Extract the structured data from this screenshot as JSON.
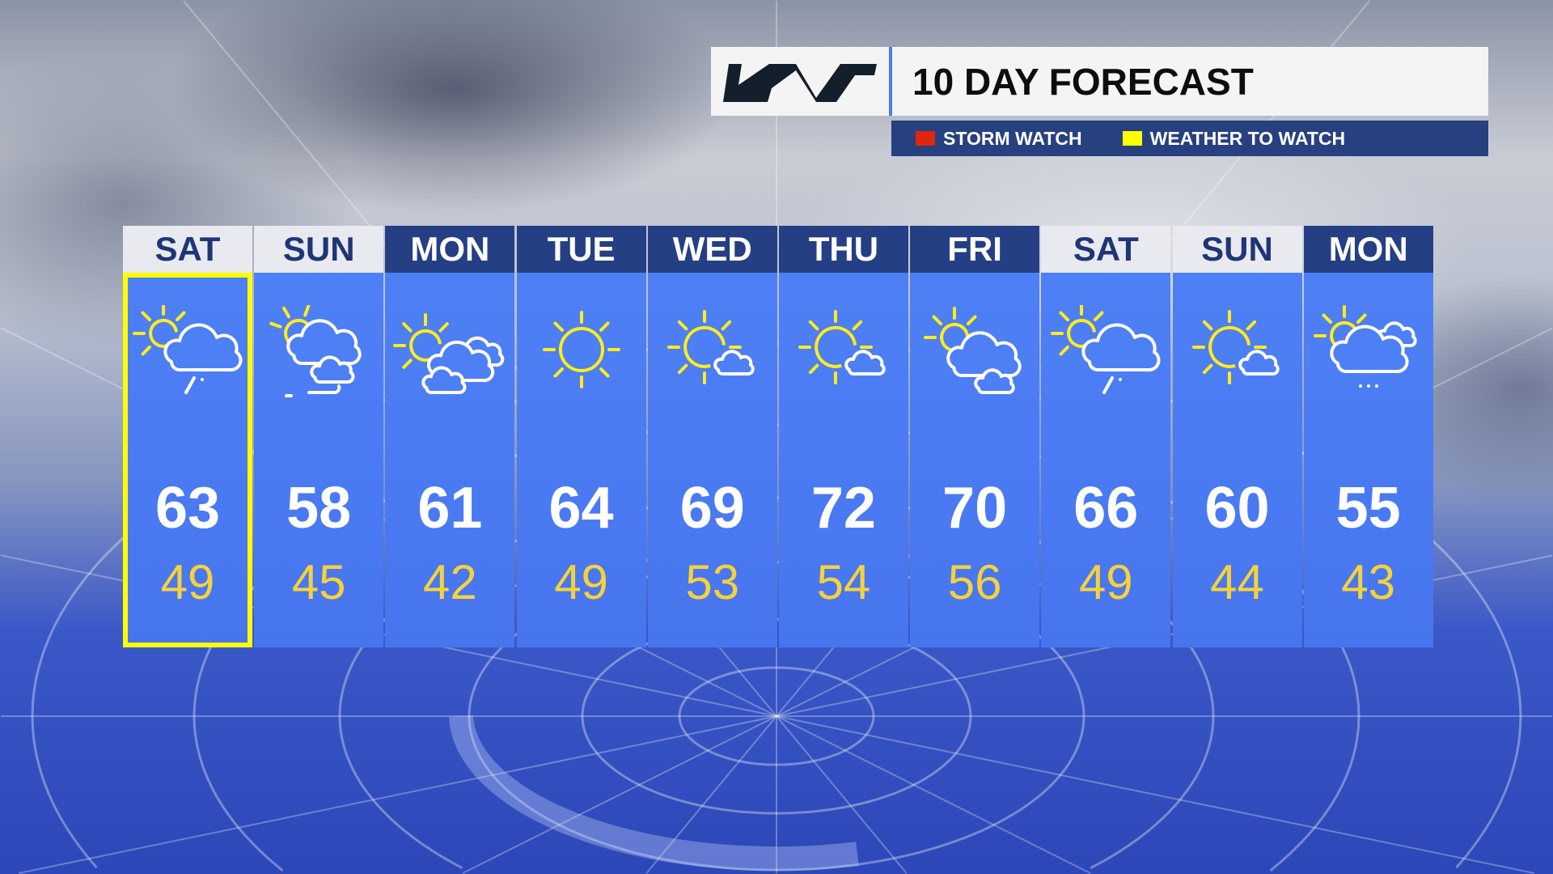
{
  "header": {
    "brand": "KIA",
    "title": "10 DAY FORECAST"
  },
  "legend": [
    {
      "label": "STORM WATCH",
      "color": "#e0260e"
    },
    {
      "label": "WEATHER TO WATCH",
      "color": "#ffff00"
    }
  ],
  "colors": {
    "highlight": "#fffc00",
    "header_dark": "#253f85",
    "header_light": "#e8eaef",
    "column": "#4e80f5",
    "low_temp": "#f6d23a"
  },
  "days": [
    {
      "day": "SAT",
      "high": "63",
      "low": "49",
      "icon": "partly-cloudy-showers",
      "header_style": "light",
      "highlighted": true
    },
    {
      "day": "SUN",
      "high": "58",
      "low": "45",
      "icon": "mostly-cloudy-fog",
      "header_style": "light",
      "highlighted": false
    },
    {
      "day": "MON",
      "high": "61",
      "low": "42",
      "icon": "mostly-cloudy",
      "header_style": "dark",
      "highlighted": false
    },
    {
      "day": "TUE",
      "high": "64",
      "low": "49",
      "icon": "sunny",
      "header_style": "dark",
      "highlighted": false
    },
    {
      "day": "WED",
      "high": "69",
      "low": "53",
      "icon": "mostly-sunny",
      "header_style": "dark",
      "highlighted": false
    },
    {
      "day": "THU",
      "high": "72",
      "low": "54",
      "icon": "mostly-sunny",
      "header_style": "dark",
      "highlighted": false
    },
    {
      "day": "FRI",
      "high": "70",
      "low": "56",
      "icon": "partly-cloudy",
      "header_style": "dark",
      "highlighted": false
    },
    {
      "day": "SAT",
      "high": "66",
      "low": "49",
      "icon": "partly-cloudy-showers",
      "header_style": "light",
      "highlighted": false
    },
    {
      "day": "SUN",
      "high": "60",
      "low": "44",
      "icon": "mostly-sunny",
      "header_style": "light",
      "highlighted": false
    },
    {
      "day": "MON",
      "high": "55",
      "low": "43",
      "icon": "cloudy-drizzle",
      "header_style": "dark",
      "highlighted": false
    }
  ]
}
